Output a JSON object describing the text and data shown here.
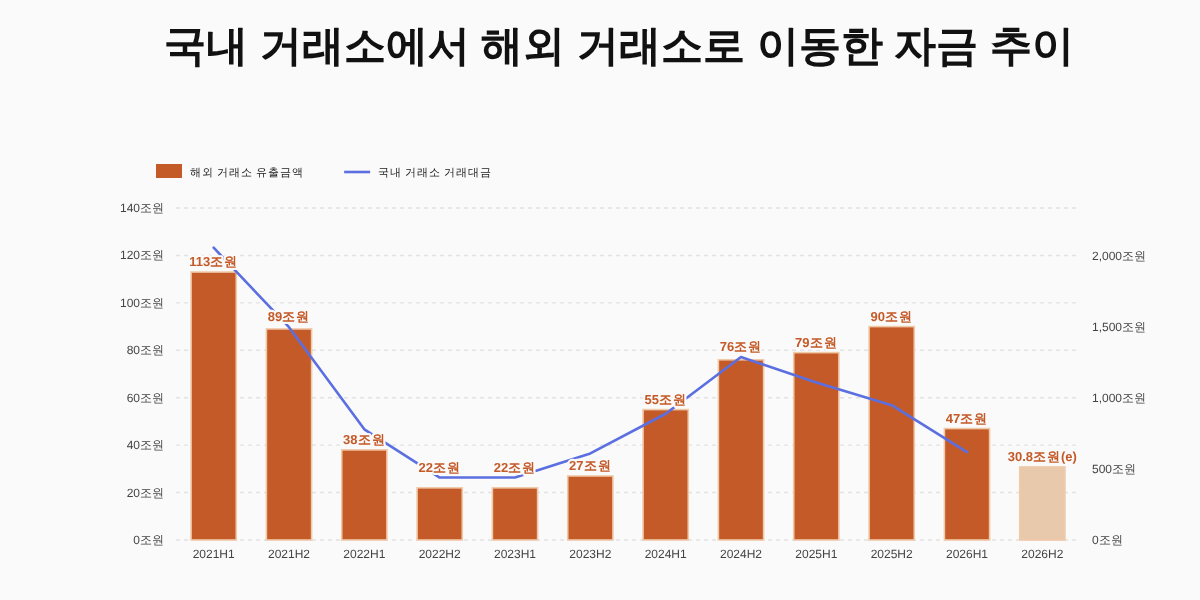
{
  "chart_data": {
    "type": "bar",
    "title": "국내 거래소에서 해외 거래소로 이동한 자금 추이",
    "categories": [
      "2021H1",
      "2021H2",
      "2022H1",
      "2022H2",
      "2023H1",
      "2023H2",
      "2024H1",
      "2024H2",
      "2025H1",
      "2025H2",
      "2026H1",
      "2026H2"
    ],
    "series": [
      {
        "name": "해외 거래소 유출금액",
        "color": "#c45a28",
        "colors": [
          "#c45a28",
          "#c45a28",
          "#c45a28",
          "#c45a28",
          "#c45a28",
          "#c45a28",
          "#c45a28",
          "#c45a28",
          "#c45a28",
          "#c45a28",
          "#c45a28",
          "#e9c9ab"
        ],
        "values": [
          113,
          89,
          38,
          22,
          22,
          27,
          55,
          76,
          79,
          90,
          47,
          30.8
        ],
        "value_labels": [
          "113조원",
          "89조원",
          "38조원",
          "22조원",
          "22조원",
          "27조원",
          "55조원",
          "76조원",
          "79조원",
          "90조원",
          "47조원",
          "30.8조원(e)"
        ]
      },
      {
        "name": "국내 거래소 거래대금",
        "type": "line",
        "axis": "y2",
        "color": "#5b6fe0",
        "values": [
          2060,
          1500,
          780,
          440,
          440,
          610,
          890,
          1290,
          1110,
          950,
          620,
          null
        ]
      }
    ],
    "ylim": [
      0,
      140
    ],
    "yticks": [
      {
        "value": 0,
        "label": "0조원"
      },
      {
        "value": 20,
        "label": "20조원"
      },
      {
        "value": 40,
        "label": "40조원"
      },
      {
        "value": 60,
        "label": "60조원"
      },
      {
        "value": 80,
        "label": "80조원"
      },
      {
        "value": 100,
        "label": "100조원"
      },
      {
        "value": 120,
        "label": "120조원"
      },
      {
        "value": 140,
        "label": "140조원"
      }
    ],
    "y2lim": [
      0,
      2340
    ],
    "y2ticks": [
      {
        "value": 0,
        "label": "0조원"
      },
      {
        "value": 500,
        "label": "500조원"
      },
      {
        "value": 1000,
        "label": "1,000조원"
      },
      {
        "value": 1500,
        "label": "1,500조원"
      },
      {
        "value": 2000,
        "label": "2,000조원"
      }
    ],
    "grid": "y",
    "legend": "top left",
    "marker": "none",
    "line_style": "solid"
  }
}
